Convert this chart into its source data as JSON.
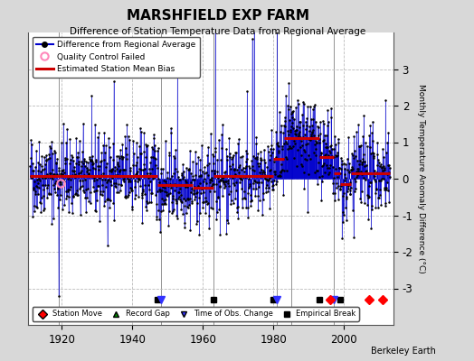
{
  "title": "MARSHFIELD EXP FARM",
  "subtitle": "Difference of Station Temperature Data from Regional Average",
  "ylabel": "Monthly Temperature Anomaly Difference (°C)",
  "ylim": [
    -4,
    4
  ],
  "xlim": [
    1910.5,
    2014
  ],
  "bg_color": "#d8d8d8",
  "plot_bg_color": "#ffffff",
  "seed": 42,
  "x_start": 1911,
  "x_end": 2013,
  "bias_segments": [
    {
      "x_start": 1911,
      "x_end": 1920,
      "bias": 0.08
    },
    {
      "x_start": 1920,
      "x_end": 1947,
      "bias": 0.08
    },
    {
      "x_start": 1947,
      "x_end": 1957,
      "bias": -0.18
    },
    {
      "x_start": 1957,
      "x_end": 1963,
      "bias": -0.25
    },
    {
      "x_start": 1963,
      "x_end": 1980,
      "bias": 0.07
    },
    {
      "x_start": 1980,
      "x_end": 1983,
      "bias": 0.55
    },
    {
      "x_start": 1983,
      "x_end": 1993,
      "bias": 1.1
    },
    {
      "x_start": 1993,
      "x_end": 1997,
      "bias": 0.6
    },
    {
      "x_start": 1997,
      "x_end": 1999,
      "bias": 0.15
    },
    {
      "x_start": 1999,
      "x_end": 2002,
      "bias": -0.15
    },
    {
      "x_start": 2002,
      "x_end": 2008,
      "bias": 0.15
    },
    {
      "x_start": 2008,
      "x_end": 2013,
      "bias": 0.15
    }
  ],
  "breakpoints_empirical": [
    1947,
    1963,
    1980,
    1993,
    1999
  ],
  "breakpoints_obs_change": [
    1948,
    1981,
    1997
  ],
  "breakpoints_station_move": [
    1996,
    2007,
    2011
  ],
  "qc_failed_x": [
    1919.5
  ],
  "qc_failed_y": [
    -0.12
  ],
  "vertical_lines_x": [
    1919,
    1948,
    1963,
    1981,
    1985,
    1997
  ],
  "gridline_color": "#bbbbbb",
  "data_line_color": "#0000cc",
  "data_marker_color": "#000000",
  "bias_line_color": "#cc0000",
  "berkeley_earth_text": "Berkeley Earth"
}
